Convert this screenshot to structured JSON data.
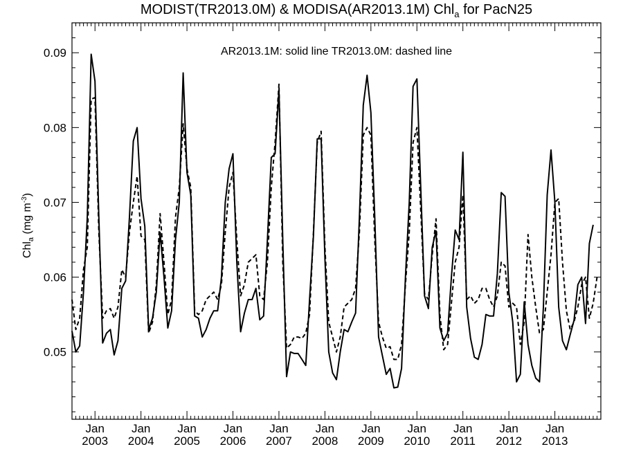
{
  "chart_data": {
    "type": "line",
    "title_main": "MODIST(TR2013.0M) & MODISA(AR2013.1M)  Chl",
    "title_sub": "a",
    "title_tail": " for PacN25",
    "ylabel_main": "Chl",
    "ylabel_sub": "a",
    "ylabel_unit": " (mg m",
    "ylabel_exp": "-3",
    "ylabel_close": ")",
    "annotation": "AR2013.1M: solid line   TR2013.0M: dashed line",
    "xlim": [
      "2002-07",
      "2014-01"
    ],
    "ylim": [
      0.041,
      0.094
    ],
    "yticks": [
      0.05,
      0.06,
      0.07,
      0.08,
      0.09
    ],
    "ytick_labels": [
      "0.05",
      "0.06",
      "0.07",
      "0.08",
      "0.09"
    ],
    "x_major_month": "Jan",
    "x_major_years": [
      "2003",
      "2004",
      "2005",
      "2006",
      "2007",
      "2008",
      "2009",
      "2010",
      "2011",
      "2012",
      "2013"
    ],
    "colors": {
      "line": "#000000",
      "axis": "#000000",
      "background": "#ffffff"
    },
    "series": [
      {
        "name": "AR2013.1M",
        "style": "solid",
        "start": "2002-07",
        "values": [
          0.0528,
          0.05,
          0.0508,
          0.058,
          0.068,
          0.0898,
          0.0862,
          0.068,
          0.0512,
          0.0525,
          0.053,
          0.0496,
          0.0515,
          0.0585,
          0.0595,
          0.068,
          0.0782,
          0.08,
          0.0705,
          0.0668,
          0.053,
          0.0545,
          0.058,
          0.066,
          0.06,
          0.0532,
          0.0555,
          0.065,
          0.07,
          0.0873,
          0.074,
          0.071,
          0.0548,
          0.0545,
          0.052,
          0.053,
          0.0545,
          0.0555,
          0.0555,
          0.06,
          0.07,
          0.0745,
          0.0765,
          0.062,
          0.0527,
          0.0552,
          0.057,
          0.057,
          0.0585,
          0.0543,
          0.0548,
          0.065,
          0.076,
          0.0765,
          0.085,
          0.065,
          0.0467,
          0.05,
          0.0498,
          0.0498,
          0.049,
          0.0482,
          0.057,
          0.0655,
          0.0785,
          0.0785,
          0.0625,
          0.05,
          0.0472,
          0.0463,
          0.05,
          0.053,
          0.0527,
          0.054,
          0.0552,
          0.068,
          0.083,
          0.087,
          0.082,
          0.068,
          0.052,
          0.0495,
          0.047,
          0.0478,
          0.0452,
          0.0453,
          0.0478,
          0.06,
          0.07,
          0.0855,
          0.0865,
          0.072,
          0.0575,
          0.0558,
          0.064,
          0.0662,
          0.0532,
          0.0515,
          0.0525,
          0.06,
          0.0663,
          0.065,
          0.0767,
          0.056,
          0.0518,
          0.0493,
          0.049,
          0.051,
          0.055,
          0.0548,
          0.0548,
          0.0605,
          0.0713,
          0.0708,
          0.058,
          0.054,
          0.046,
          0.047,
          0.0567,
          0.051,
          0.0482,
          0.0465,
          0.046,
          0.056,
          0.071,
          0.077,
          0.07,
          0.056,
          0.0515,
          0.0503,
          0.0523,
          0.0542,
          0.059,
          0.06,
          0.0538,
          0.0645,
          0.067
        ]
      },
      {
        "name": "TR2013.0M",
        "style": "dashed",
        "start": "2002-07",
        "values": [
          0.057,
          0.053,
          0.0545,
          0.061,
          0.064,
          0.0838,
          0.084,
          0.066,
          0.0545,
          0.0555,
          0.0558,
          0.0545,
          0.056,
          0.061,
          0.06,
          0.066,
          0.07,
          0.0735,
          0.0655,
          0.065,
          0.0525,
          0.054,
          0.059,
          0.0685,
          0.062,
          0.055,
          0.057,
          0.068,
          0.072,
          0.0805,
          0.0745,
          0.072,
          0.0555,
          0.055,
          0.0555,
          0.057,
          0.0575,
          0.058,
          0.057,
          0.059,
          0.066,
          0.072,
          0.074,
          0.065,
          0.0575,
          0.059,
          0.062,
          0.0625,
          0.063,
          0.0575,
          0.057,
          0.062,
          0.072,
          0.078,
          0.0858,
          0.062,
          0.0505,
          0.051,
          0.052,
          0.052,
          0.0518,
          0.0525,
          0.055,
          0.066,
          0.078,
          0.0795,
          0.064,
          0.054,
          0.052,
          0.05,
          0.052,
          0.056,
          0.0565,
          0.057,
          0.0585,
          0.066,
          0.079,
          0.08,
          0.079,
          0.065,
          0.054,
          0.052,
          0.0505,
          0.0507,
          0.049,
          0.049,
          0.051,
          0.059,
          0.066,
          0.078,
          0.08,
          0.069,
          0.0578,
          0.057,
          0.063,
          0.0678,
          0.055,
          0.0503,
          0.051,
          0.0565,
          0.062,
          0.064,
          0.071,
          0.057,
          0.0575,
          0.0565,
          0.057,
          0.0585,
          0.0585,
          0.057,
          0.056,
          0.0575,
          0.062,
          0.0615,
          0.056,
          0.0565,
          0.056,
          0.051,
          0.054,
          0.0657,
          0.06,
          0.056,
          0.0525,
          0.053,
          0.058,
          0.063,
          0.07,
          0.0705,
          0.062,
          0.0555,
          0.053,
          0.054,
          0.056,
          0.059,
          0.06,
          0.0545,
          0.0565,
          0.06
        ]
      }
    ]
  }
}
